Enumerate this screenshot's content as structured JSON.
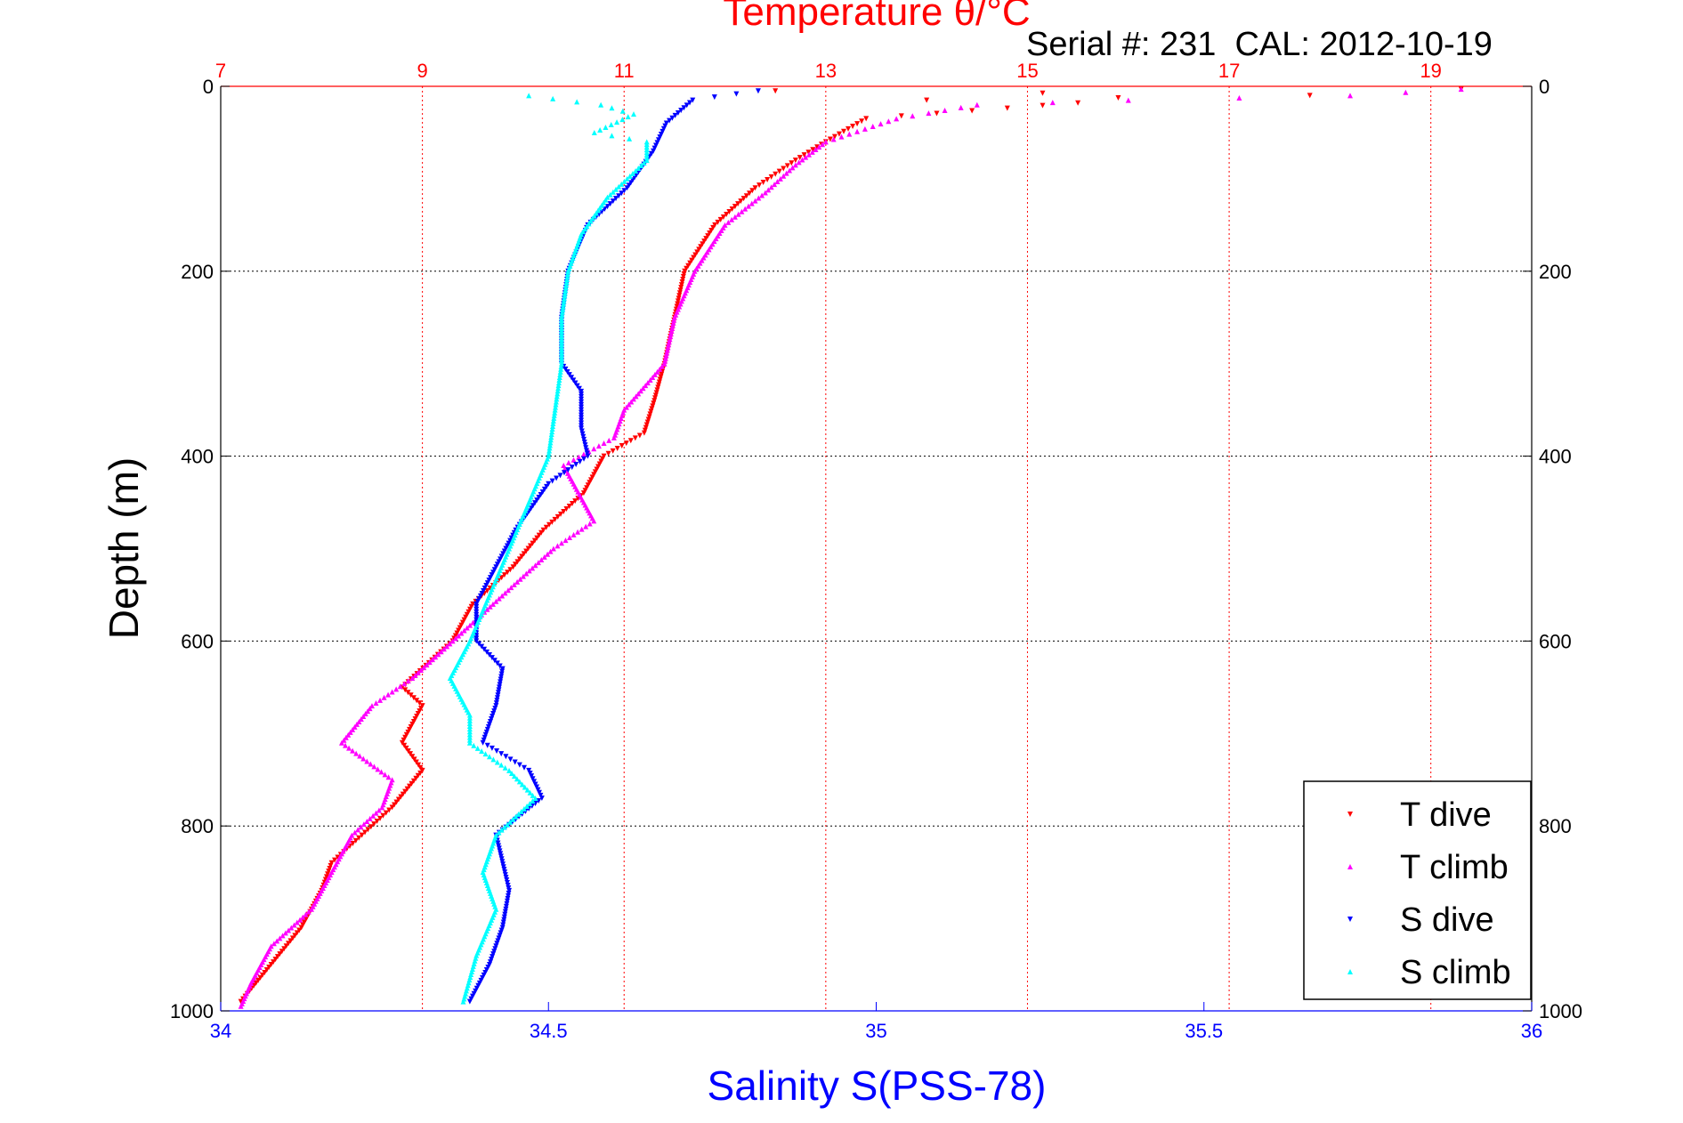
{
  "chart_data": {
    "type": "scatter",
    "title_top": "Temperature θ/°C",
    "subtitle": "Serial #: 231  CAL: 2012-10-19",
    "ylabel": "Depth (m)",
    "xlabel_bottom": "Salinity S(PSS-78)",
    "ylim": [
      0,
      1000
    ],
    "y_reversed": true,
    "y_ticks": [
      "0",
      "200",
      "400",
      "600",
      "800",
      "1000"
    ],
    "x_bottom": {
      "lim": [
        34,
        36
      ],
      "ticks": [
        "34",
        "34.5",
        "35",
        "35.5",
        "36"
      ],
      "color": "#0000ff"
    },
    "x_top": {
      "lim": [
        7,
        20
      ],
      "ticks": [
        "7",
        "9",
        "11",
        "13",
        "15",
        "17",
        "19"
      ],
      "color": "#ff0000"
    },
    "grid": true,
    "legend_position": "bottom-right",
    "series": [
      {
        "name": "T dive",
        "axis": "top",
        "color": "#ff0000",
        "marker": "triangle-down",
        "points": [
          [
            12.5,
            5
          ],
          [
            14.0,
            15
          ],
          [
            15.5,
            18
          ],
          [
            19.3,
            3
          ],
          [
            17.8,
            10
          ],
          [
            13.4,
            35
          ],
          [
            13.0,
            60
          ],
          [
            12.7,
            80
          ],
          [
            12.3,
            110
          ],
          [
            11.9,
            150
          ],
          [
            11.6,
            200
          ],
          [
            11.5,
            250
          ],
          [
            11.4,
            300
          ],
          [
            11.3,
            340
          ],
          [
            11.2,
            375
          ],
          [
            10.8,
            400
          ],
          [
            10.6,
            440
          ],
          [
            10.2,
            480
          ],
          [
            9.9,
            520
          ],
          [
            9.5,
            560
          ],
          [
            9.3,
            600
          ],
          [
            8.8,
            650
          ],
          [
            9.0,
            670
          ],
          [
            8.8,
            710
          ],
          [
            9.0,
            740
          ],
          [
            8.7,
            780
          ],
          [
            8.4,
            810
          ],
          [
            8.1,
            840
          ],
          [
            8.0,
            870
          ],
          [
            7.8,
            910
          ],
          [
            7.5,
            950
          ],
          [
            7.2,
            990
          ]
        ]
      },
      {
        "name": "T climb",
        "axis": "top",
        "color": "#ff00ff",
        "marker": "triangle-up",
        "points": [
          [
            14.5,
            20
          ],
          [
            16.0,
            15
          ],
          [
            18.2,
            10
          ],
          [
            19.3,
            3
          ],
          [
            13.7,
            35
          ],
          [
            13.0,
            60
          ],
          [
            12.7,
            85
          ],
          [
            12.4,
            115
          ],
          [
            12.0,
            150
          ],
          [
            11.7,
            200
          ],
          [
            11.5,
            250
          ],
          [
            11.4,
            300
          ],
          [
            11.0,
            350
          ],
          [
            10.9,
            380
          ],
          [
            10.4,
            410
          ],
          [
            10.7,
            470
          ],
          [
            10.3,
            500
          ],
          [
            10.0,
            530
          ],
          [
            9.7,
            560
          ],
          [
            9.3,
            600
          ],
          [
            8.9,
            640
          ],
          [
            8.5,
            670
          ],
          [
            8.2,
            710
          ],
          [
            8.7,
            750
          ],
          [
            8.6,
            780
          ],
          [
            8.3,
            810
          ],
          [
            8.1,
            850
          ],
          [
            7.9,
            890
          ],
          [
            7.5,
            930
          ],
          [
            7.3,
            970
          ],
          [
            7.2,
            995
          ]
        ]
      },
      {
        "name": "S dive",
        "axis": "bottom",
        "color": "#0000ff",
        "marker": "triangle-down",
        "points": [
          [
            34.82,
            5
          ],
          [
            34.72,
            15
          ],
          [
            34.68,
            40
          ],
          [
            34.66,
            70
          ],
          [
            34.62,
            110
          ],
          [
            34.56,
            150
          ],
          [
            34.53,
            200
          ],
          [
            34.52,
            250
          ],
          [
            34.52,
            300
          ],
          [
            34.55,
            330
          ],
          [
            34.55,
            370
          ],
          [
            34.56,
            400
          ],
          [
            34.5,
            430
          ],
          [
            34.45,
            480
          ],
          [
            34.42,
            520
          ],
          [
            34.39,
            560
          ],
          [
            34.39,
            600
          ],
          [
            34.43,
            630
          ],
          [
            34.42,
            670
          ],
          [
            34.4,
            710
          ],
          [
            34.47,
            740
          ],
          [
            34.49,
            770
          ],
          [
            34.42,
            810
          ],
          [
            34.44,
            870
          ],
          [
            34.43,
            910
          ],
          [
            34.41,
            950
          ],
          [
            34.38,
            990
          ]
        ]
      },
      {
        "name": "S climb",
        "axis": "bottom",
        "color": "#00ffff",
        "marker": "triangle-up",
        "points": [
          [
            34.47,
            10
          ],
          [
            34.58,
            20
          ],
          [
            34.63,
            30
          ],
          [
            34.57,
            50
          ],
          [
            34.65,
            60
          ],
          [
            34.65,
            80
          ],
          [
            34.59,
            120
          ],
          [
            34.55,
            160
          ],
          [
            34.53,
            200
          ],
          [
            34.52,
            250
          ],
          [
            34.52,
            300
          ],
          [
            34.51,
            350
          ],
          [
            34.5,
            400
          ],
          [
            34.47,
            450
          ],
          [
            34.44,
            500
          ],
          [
            34.41,
            550
          ],
          [
            34.38,
            600
          ],
          [
            34.35,
            640
          ],
          [
            34.38,
            680
          ],
          [
            34.38,
            710
          ],
          [
            34.44,
            740
          ],
          [
            34.48,
            770
          ],
          [
            34.42,
            810
          ],
          [
            34.4,
            850
          ],
          [
            34.42,
            890
          ],
          [
            34.39,
            940
          ],
          [
            34.37,
            990
          ]
        ]
      }
    ]
  }
}
